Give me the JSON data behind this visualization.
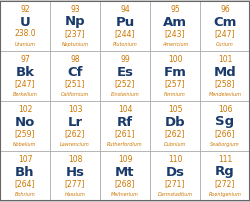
{
  "elements": [
    {
      "num": "92",
      "sym": "U",
      "mass": "238.0",
      "name": "Uranium"
    },
    {
      "num": "93",
      "sym": "Np",
      "mass": "[237]",
      "name": "Neptunium"
    },
    {
      "num": "94",
      "sym": "Pu",
      "mass": "[244]",
      "name": "Plutonium"
    },
    {
      "num": "95",
      "sym": "Am",
      "mass": "[243]",
      "name": "Americium"
    },
    {
      "num": "96",
      "sym": "Cm",
      "mass": "[247]",
      "name": "Curium"
    },
    {
      "num": "97",
      "sym": "Bk",
      "mass": "[247]",
      "name": "Berkelium"
    },
    {
      "num": "98",
      "sym": "Cf",
      "mass": "[251]",
      "name": "Californium"
    },
    {
      "num": "99",
      "sym": "Es",
      "mass": "[252]",
      "name": "Einsteinium"
    },
    {
      "num": "100",
      "sym": "Fm",
      "mass": "[257]",
      "name": "Fermium"
    },
    {
      "num": "101",
      "sym": "Md",
      "mass": "[258]",
      "name": "Mendelevium"
    },
    {
      "num": "102",
      "sym": "No",
      "mass": "[259]",
      "name": "Nobelium"
    },
    {
      "num": "103",
      "sym": "Lr",
      "mass": "[262]",
      "name": "Lawrencium"
    },
    {
      "num": "104",
      "sym": "Rf",
      "mass": "[261]",
      "name": "Rutherfordium"
    },
    {
      "num": "105",
      "sym": "Db",
      "mass": "[262]",
      "name": "Dubnium"
    },
    {
      "num": "106",
      "sym": "Sg",
      "mass": "[266]",
      "name": "Seaborgium"
    },
    {
      "num": "107",
      "sym": "Bh",
      "mass": "[264]",
      "name": "Bohrium"
    },
    {
      "num": "108",
      "sym": "Hs",
      "mass": "[277]",
      "name": "Hassium"
    },
    {
      "num": "109",
      "sym": "Mt",
      "mass": "[268]",
      "name": "Meitnerium"
    },
    {
      "num": "110",
      "sym": "Ds",
      "mass": "[271]",
      "name": "Darmstadtium"
    },
    {
      "num": "111",
      "sym": "Rg",
      "mass": "[272]",
      "name": "Roentgenium"
    }
  ],
  "cols": 5,
  "rows": 4,
  "outer_bg": "#c8c8c8",
  "cell_bg": "#ffffff",
  "border_color": "#aaaaaa",
  "outer_border_color": "#666666",
  "num_color": "#cc7700",
  "sym_color": "#1a3a6b",
  "mass_color": "#cc7700",
  "name_color": "#cc7700",
  "num_fontsize": 5.5,
  "sym_fontsize": 9.5,
  "mass_fontsize": 5.5,
  "name_fontsize": 3.5
}
